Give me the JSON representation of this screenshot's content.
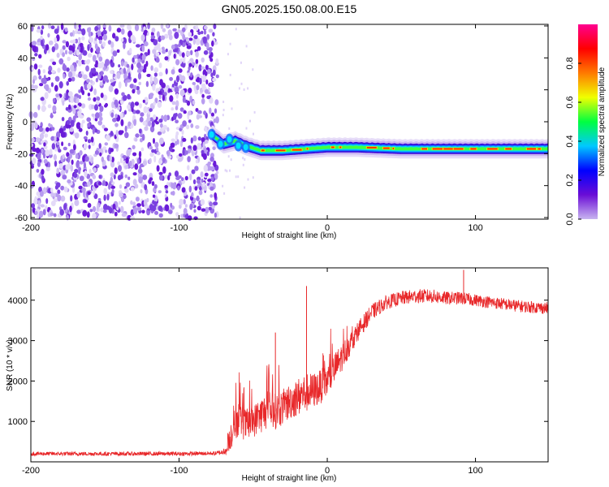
{
  "figure": {
    "title": "GN05.2025.150.08.00.E15"
  },
  "chart_data": [
    {
      "type": "heatmap",
      "name": "spectrogram",
      "xlabel": "Height of straight line (km)",
      "ylabel": "Frequency (Hz)",
      "xlim": [
        -200,
        149
      ],
      "ylim": [
        -61,
        61
      ],
      "xticks": [
        -200,
        -100,
        0,
        100
      ],
      "yticks": [
        -60,
        -40,
        -20,
        0,
        20,
        40,
        60
      ],
      "colorbar": {
        "label": "Normalized spectral amplitude",
        "range": [
          0.0,
          1.0
        ],
        "ticks": [
          0.0,
          0.2,
          0.4,
          0.6,
          0.8
        ],
        "colormap": [
          "#c8b4f0",
          "#6a0dd6",
          "#0000ff",
          "#00c8ff",
          "#00ff40",
          "#f0ff00",
          "#ff7a00",
          "#ff0000",
          "#ff0090"
        ]
      },
      "regions": [
        {
          "description": "broadband noise",
          "x_from": -200,
          "x_to": -74,
          "y_from": -61,
          "y_to": 61
        },
        {
          "description": "carrier line",
          "points": [
            {
              "x": -78,
              "y": -8
            },
            {
              "x": -70,
              "y": -14
            },
            {
              "x": -62,
              "y": -12
            },
            {
              "x": -55,
              "y": -15
            },
            {
              "x": -45,
              "y": -18
            },
            {
              "x": -30,
              "y": -18
            },
            {
              "x": -15,
              "y": -17
            },
            {
              "x": 0,
              "y": -16
            },
            {
              "x": 20,
              "y": -16
            },
            {
              "x": 50,
              "y": -17
            },
            {
              "x": 80,
              "y": -17
            },
            {
              "x": 110,
              "y": -17
            },
            {
              "x": 149,
              "y": -17
            }
          ]
        }
      ],
      "grid": false
    },
    {
      "type": "line",
      "name": "snr",
      "xlabel": "Height of straight line (km)",
      "ylabel": "SNR (10 * v/v)",
      "xlim": [
        -200,
        149
      ],
      "ylim": [
        0,
        4800
      ],
      "xticks": [
        -200,
        -100,
        0,
        100
      ],
      "yticks": [
        1000,
        2000,
        3000,
        4000
      ],
      "color": "#e8282a",
      "grid": false,
      "series": [
        {
          "x": [
            -200,
            -150,
            -100,
            -75,
            -68,
            -65,
            -60,
            -55,
            -50,
            -45,
            -40,
            -35,
            -30,
            -25,
            -20,
            -15,
            -10,
            -5,
            0,
            5,
            10,
            15,
            20,
            25,
            30,
            40,
            50,
            60,
            70,
            80,
            90,
            100,
            110,
            120,
            130,
            149
          ],
          "y": [
            200,
            200,
            200,
            210,
            260,
            700,
            1100,
            900,
            1000,
            1150,
            1300,
            1250,
            1350,
            1500,
            1600,
            1700,
            1750,
            1850,
            2000,
            2300,
            2600,
            2900,
            3200,
            3450,
            3700,
            3950,
            4050,
            4100,
            4100,
            4050,
            4050,
            4000,
            3950,
            3900,
            3850,
            3800
          ],
          "noise": [
            100,
            100,
            100,
            100,
            150,
            800,
            900,
            800,
            800,
            900,
            950,
            900,
            900,
            900,
            950,
            1000,
            900,
            850,
            850,
            800,
            700,
            600,
            500,
            450,
            400,
            350,
            350,
            350,
            350,
            330,
            320,
            300,
            300,
            300,
            300,
            300
          ]
        }
      ],
      "annotations": [
        {
          "x": -35,
          "y": 3200
        },
        {
          "x": -14,
          "y": 4350
        },
        {
          "x": 92,
          "y": 4750
        }
      ]
    }
  ]
}
